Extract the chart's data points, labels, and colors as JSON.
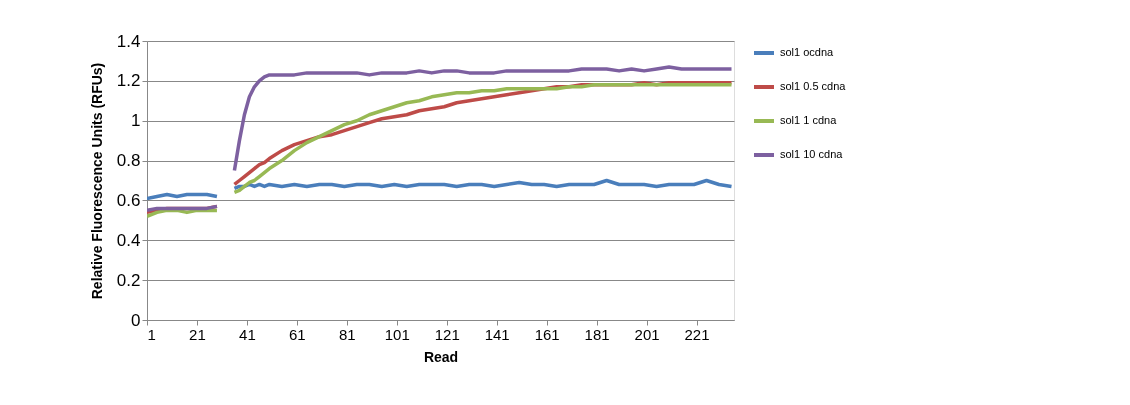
{
  "chart_data": {
    "type": "line",
    "xlabel": "Read",
    "ylabel": "Relative Fluorescence Units (RFUs)",
    "x": [
      1,
      5,
      9,
      13,
      17,
      21,
      25,
      29,
      33,
      36,
      38,
      40,
      42,
      44,
      46,
      48,
      50,
      55,
      60,
      65,
      70,
      75,
      80,
      85,
      90,
      95,
      100,
      105,
      110,
      115,
      120,
      125,
      130,
      135,
      140,
      145,
      150,
      155,
      160,
      165,
      170,
      175,
      180,
      185,
      190,
      195,
      200,
      205,
      210,
      215,
      220,
      225,
      230,
      235
    ],
    "series": [
      {
        "name": "sol1 ocdna",
        "color": "#4a7ebb",
        "values": [
          0.61,
          0.62,
          0.63,
          0.62,
          0.63,
          0.63,
          0.63,
          0.62,
          null,
          0.66,
          0.67,
          0.67,
          0.68,
          0.67,
          0.68,
          0.67,
          0.68,
          0.67,
          0.68,
          0.67,
          0.68,
          0.68,
          0.67,
          0.68,
          0.68,
          0.67,
          0.68,
          0.67,
          0.68,
          0.68,
          0.68,
          0.67,
          0.68,
          0.68,
          0.67,
          0.68,
          0.69,
          0.68,
          0.68,
          0.67,
          0.68,
          0.68,
          0.68,
          0.7,
          0.68,
          0.68,
          0.68,
          0.67,
          0.68,
          0.68,
          0.68,
          0.7,
          0.68,
          0.67
        ]
      },
      {
        "name": "sol1 0.5 cdna",
        "color": "#be4b48",
        "values": [
          0.54,
          0.55,
          0.56,
          0.56,
          0.56,
          0.56,
          0.56,
          0.57,
          null,
          0.68,
          0.7,
          0.72,
          0.74,
          0.76,
          0.78,
          0.79,
          0.81,
          0.85,
          0.88,
          0.9,
          0.92,
          0.93,
          0.95,
          0.97,
          0.99,
          1.01,
          1.02,
          1.03,
          1.05,
          1.06,
          1.07,
          1.09,
          1.1,
          1.11,
          1.12,
          1.13,
          1.14,
          1.15,
          1.16,
          1.17,
          1.17,
          1.18,
          1.18,
          1.18,
          1.18,
          1.18,
          1.19,
          1.18,
          1.19,
          1.19,
          1.19,
          1.19,
          1.19,
          1.19
        ]
      },
      {
        "name": "sol1 1 cdna",
        "color": "#98b954",
        "values": [
          0.52,
          0.54,
          0.55,
          0.55,
          0.54,
          0.55,
          0.55,
          0.55,
          null,
          0.64,
          0.65,
          0.67,
          0.69,
          0.7,
          0.72,
          0.74,
          0.76,
          0.8,
          0.85,
          0.89,
          0.92,
          0.95,
          0.98,
          1.0,
          1.03,
          1.05,
          1.07,
          1.09,
          1.1,
          1.12,
          1.13,
          1.14,
          1.14,
          1.15,
          1.15,
          1.16,
          1.16,
          1.16,
          1.16,
          1.16,
          1.17,
          1.17,
          1.18,
          1.18,
          1.18,
          1.18,
          1.18,
          1.18,
          1.18,
          1.18,
          1.18,
          1.18,
          1.18,
          1.18
        ]
      },
      {
        "name": "sol1 10 cdna",
        "color": "#7d60a0",
        "values": [
          0.55,
          0.56,
          0.56,
          0.56,
          0.56,
          0.56,
          0.56,
          0.57,
          null,
          0.75,
          0.9,
          1.03,
          1.12,
          1.17,
          1.2,
          1.22,
          1.23,
          1.23,
          1.23,
          1.24,
          1.24,
          1.24,
          1.24,
          1.24,
          1.23,
          1.24,
          1.24,
          1.24,
          1.25,
          1.24,
          1.25,
          1.25,
          1.24,
          1.24,
          1.24,
          1.25,
          1.25,
          1.25,
          1.25,
          1.25,
          1.25,
          1.26,
          1.26,
          1.26,
          1.25,
          1.26,
          1.25,
          1.26,
          1.27,
          1.26,
          1.26,
          1.26,
          1.26,
          1.26
        ]
      }
    ],
    "xlim": [
      1,
      236
    ],
    "xticks": [
      1,
      21,
      41,
      61,
      81,
      101,
      121,
      141,
      161,
      181,
      201,
      221
    ],
    "ylim": [
      0,
      1.4
    ],
    "yticks": [
      0,
      0.2,
      0.4,
      0.6,
      0.8,
      1,
      1.2,
      1.4
    ],
    "grid": "y",
    "legend": "right",
    "marker": "none",
    "line_style": "solid"
  }
}
